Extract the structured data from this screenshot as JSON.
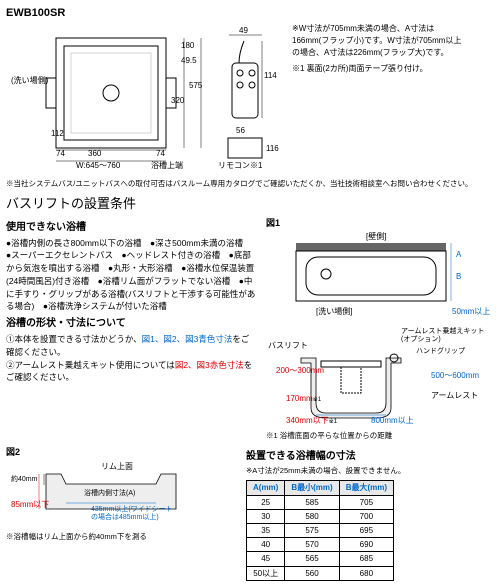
{
  "model": "EWB100SR",
  "topDiagram": {
    "dims": {
      "d180": "180",
      "d495": "49.5",
      "d575": "575",
      "d320": "320",
      "d112": "112",
      "d74a": "74",
      "d360": "360",
      "w_range": "W:645～760",
      "d74b": "74"
    },
    "washSide": "(洗い場側)",
    "bathTop": "浴槽上端"
  },
  "remote": {
    "d49": "49",
    "d114": "114",
    "d56": "56",
    "d116": "116",
    "label": "リモコン",
    "star": "※1"
  },
  "notes": {
    "n1": "※W寸法が705mm未満の場合、A寸法は166mm(フラップ小)です。W寸法が705mm以上の場合、A寸法は226mm(フラップ大)です。",
    "n2": "※1 裏面(2カ所)両面テープ張り付け。"
  },
  "cautionLine": "※当社システムバス/ユニットバスへの取付可否はバスルーム専用カタログでご確認いただくか、当社技術相談室へお問い合わせください。",
  "sectionTitle": "バスリフトの設置条件",
  "cannotUse": {
    "title": "使用できない浴槽",
    "text": "●浴槽内側の長さ800mm以下の浴槽　●深さ500mm未満の浴槽　●スーパーエクセレントバス　●ヘッドレスト付きの浴槽　●底部から気泡を噴出する浴槽　●丸形・大形浴槽　●浴槽水位保温装置(24時間風呂)付き浴槽　●浴槽リム面がフラットでない浴槽　●中に手すり・グリップがある浴槽(バスリフトと干渉する可能性がある場合)　●浴槽洗浄システムが付いた浴槽"
  },
  "shape": {
    "title": "浴槽の形状・寸法について",
    "item1a": "①本体を設置できる寸法かどうか、",
    "item1b": "図1、図2、図3青色寸法",
    "item1c": "をご確認ください。",
    "item2a": "②アームレスト乗越えキット使用については",
    "item2b": "図2、図3赤色寸法",
    "item2c": "をご確認ください。"
  },
  "fig1": {
    "label": "図1",
    "wallSide": "[壁側]",
    "washSide": "[洗い場側]",
    "dimA": "A",
    "dimB": "B",
    "dim50": "50mm以上"
  },
  "fig3": {
    "label": "図3",
    "bathLift": "バスリフト",
    "armKit": "アームレスト乗越えキット(オプション)",
    "handGrip": "ハンドグリップ",
    "armRest": "アームレスト",
    "d200_300": "200～300mm",
    "d500_600": "500～600mm",
    "d170": "170mm",
    "d340": "340mm以下",
    "d800": "800mm以上",
    "note": "※1 浴槽底面の平らな位置からの距離"
  },
  "fig2": {
    "label": "図2",
    "rimTop": "リム上面",
    "rimInner": "浴槽内側寸法(A)",
    "d40a": "約40mm",
    "d85": "85mm以下",
    "d435": "435mm以上(ワイドシートの場合は485mm以上)",
    "note": "※浴槽幅はリム上面から約40mm下を測る"
  },
  "specTable": {
    "title": "設置できる浴槽幅の寸法",
    "note": "※A寸法が25mm未満の場合、設置できません。",
    "headers": {
      "a": "A(mm)",
      "bmin": "B最小(mm)",
      "bmax": "B最大(mm)"
    },
    "rows": [
      {
        "a": "25",
        "bmin": "585",
        "bmax": "705"
      },
      {
        "a": "30",
        "bmin": "580",
        "bmax": "700"
      },
      {
        "a": "35",
        "bmin": "575",
        "bmax": "695"
      },
      {
        "a": "40",
        "bmin": "570",
        "bmax": "690"
      },
      {
        "a": "45",
        "bmin": "565",
        "bmax": "685"
      },
      {
        "a": "50以上",
        "bmin": "560",
        "bmax": "680"
      }
    ]
  }
}
